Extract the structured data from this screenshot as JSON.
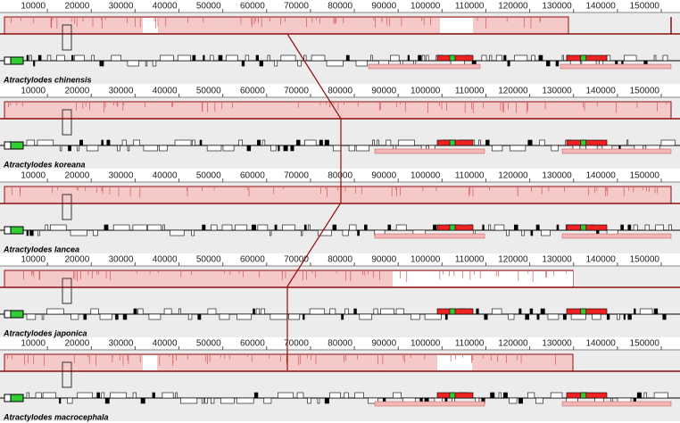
{
  "tracks": [
    {
      "name": "Atractylodes chinensis",
      "ticks": [
        10000,
        20000,
        30000,
        40000,
        50000,
        60000,
        70000,
        80000,
        90000,
        100000,
        110000,
        120000,
        130000,
        140000,
        150000
      ]
    },
    {
      "name": "Atractylodes koreana",
      "ticks": [
        10000,
        20000,
        30000,
        40000,
        50000,
        60000,
        70000,
        80000,
        90000,
        100000,
        110000,
        120000,
        130000,
        140000,
        150000
      ]
    },
    {
      "name": "Atractylodes lancea",
      "ticks": [
        10000,
        20000,
        30000,
        40000,
        50000,
        60000,
        70000,
        80000,
        90000,
        100000,
        110000,
        120000,
        130000,
        140000,
        150000
      ]
    },
    {
      "name": "Atractylodes japonica",
      "ticks": [
        10000,
        20000,
        30000,
        40000,
        50000,
        60000,
        70000,
        80000,
        90000,
        100000,
        110000,
        120000,
        130000,
        140000,
        150000
      ]
    },
    {
      "name": "Atractylodes macrocephala",
      "ticks": [
        10000,
        20000,
        30000,
        40000,
        50000,
        60000,
        70000,
        80000,
        90000,
        100000,
        110000,
        120000,
        130000,
        140000,
        150000
      ]
    }
  ]
}
